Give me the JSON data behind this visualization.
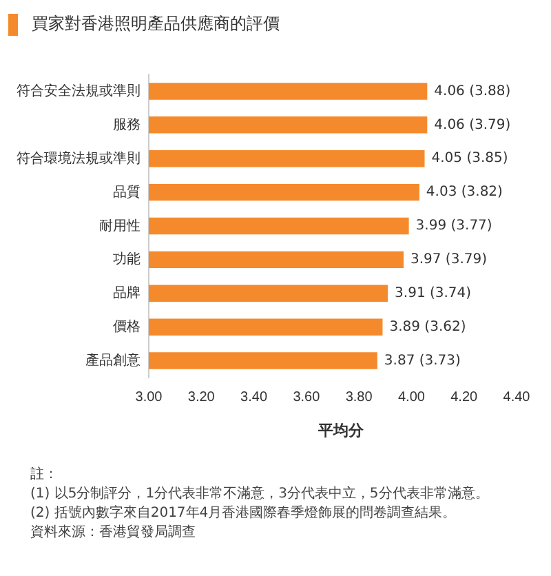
{
  "chart_data": {
    "type": "bar",
    "orientation": "horizontal",
    "title": "買家對香港照明產品供應商的評價",
    "xlabel": "平均分",
    "categories": [
      "符合安全法規或準則",
      "服務",
      "符合環境法規或準則",
      "品質",
      "耐用性",
      "功能",
      "品牌",
      "價格",
      "產品創意"
    ],
    "values": [
      4.06,
      4.06,
      4.05,
      4.03,
      3.99,
      3.97,
      3.91,
      3.89,
      3.87
    ],
    "value_labels": [
      "4.06 (3.88)",
      "4.06 (3.79)",
      "4.05 (3.85)",
      "4.03 (3.82)",
      "3.99 (3.77)",
      "3.97 (3.79)",
      "3.91 (3.74)",
      "3.89 (3.62)",
      "3.87 (3.73)"
    ],
    "color": "#f58a2c",
    "xlim": [
      3,
      4.4
    ],
    "xticks": [
      {
        "value": 3,
        "label": "3.00"
      },
      {
        "value": 3.2,
        "label": "3.20"
      },
      {
        "value": 3.4,
        "label": "3.40"
      },
      {
        "value": 3.6,
        "label": "3.60"
      },
      {
        "value": 3.8,
        "label": "3.80"
      },
      {
        "value": 4,
        "label": "4.00"
      },
      {
        "value": 4.2,
        "label": "4.20"
      },
      {
        "value": 4.4,
        "label": "4.40"
      }
    ],
    "grid": false,
    "legend": false,
    "annotations": [
      "註：",
      "(1) 以5分制評分，1分代表非常不滿意，3分代表中立，5分代表非常滿意。",
      "(2) 括號內數字來自2017年4月香港國際春季燈飾展的問卷調查結果。",
      "資料來源：香港貿發局調查"
    ]
  }
}
